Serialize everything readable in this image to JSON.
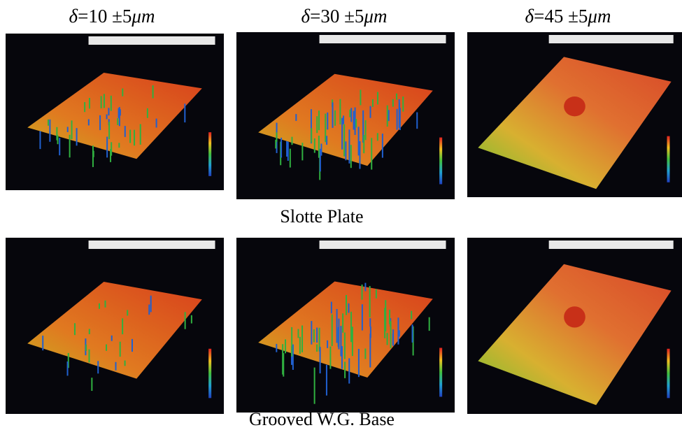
{
  "column_headers": [
    {
      "symbol": "δ",
      "text": "=10 ±5",
      "unit": "μm"
    },
    {
      "symbol": "δ",
      "text": "=30 ±5",
      "unit": "μm"
    },
    {
      "symbol": "δ",
      "text": "=45 ±5",
      "unit": "μm"
    }
  ],
  "row_captions": [
    "Slotte Plate",
    "Grooved W.G. Base"
  ]
}
